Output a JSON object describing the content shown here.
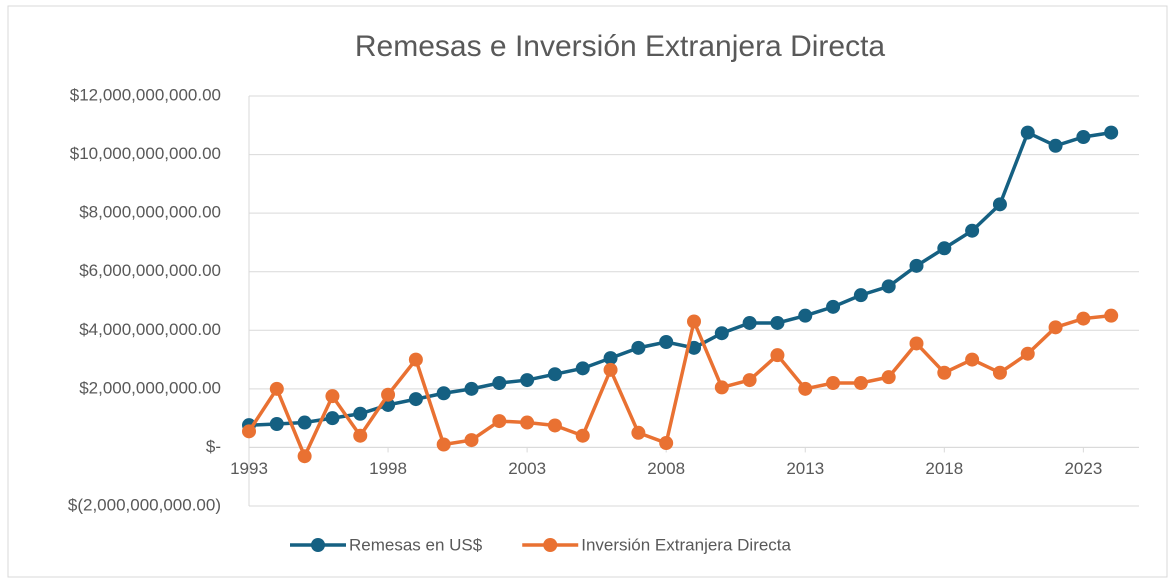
{
  "chart_data": {
    "type": "line",
    "title": "Remesas e Inversión Extranjera Directa",
    "x": [
      1993,
      1994,
      1995,
      1996,
      1997,
      1998,
      1999,
      2000,
      2001,
      2002,
      2003,
      2004,
      2005,
      2006,
      2007,
      2008,
      2009,
      2010,
      2011,
      2012,
      2013,
      2014,
      2015,
      2016,
      2017,
      2018,
      2019,
      2020,
      2021,
      2022,
      2023,
      2024
    ],
    "series": [
      {
        "name": "Remesas en US$",
        "color": "#156082",
        "values": [
          760000000,
          800000000,
          850000000,
          1000000000,
          1150000000,
          1450000000,
          1650000000,
          1850000000,
          2000000000,
          2200000000,
          2300000000,
          2500000000,
          2700000000,
          3050000000,
          3400000000,
          3600000000,
          3400000000,
          3900000000,
          4250000000,
          4250000000,
          4500000000,
          4800000000,
          5200000000,
          5500000000,
          6200000000,
          6800000000,
          7400000000,
          8300000000,
          10750000000,
          10300000000,
          10600000000,
          10750000000
        ]
      },
      {
        "name": "Inversión Extranjera Directa",
        "color": "#e97132",
        "values": [
          550000000,
          2000000000,
          -300000000,
          1750000000,
          400000000,
          1800000000,
          3000000000,
          100000000,
          250000000,
          900000000,
          850000000,
          750000000,
          400000000,
          2650000000,
          500000000,
          150000000,
          4300000000,
          2050000000,
          2300000000,
          3150000000,
          2000000000,
          2200000000,
          2200000000,
          2400000000,
          3550000000,
          2550000000,
          3000000000,
          2550000000,
          3200000000,
          4100000000,
          4400000000,
          4500000000
        ]
      }
    ],
    "xlim": [
      1993,
      2025
    ],
    "xticks": [
      1993,
      1998,
      2003,
      2008,
      2013,
      2018,
      2023
    ],
    "ylim": [
      -2000000000,
      12000000000
    ],
    "yticks": [
      {
        "value": -2000000000,
        "label": "$(2,000,000,000.00)"
      },
      {
        "value": 0,
        "label": "$-"
      },
      {
        "value": 2000000000,
        "label": "$2,000,000,000.00"
      },
      {
        "value": 4000000000,
        "label": "$4,000,000,000.00"
      },
      {
        "value": 6000000000,
        "label": "$6,000,000,000.00"
      },
      {
        "value": 8000000000,
        "label": "$8,000,000,000.00"
      },
      {
        "value": 10000000000,
        "label": "$10,000,000,000.00"
      },
      {
        "value": 12000000000,
        "label": "$12,000,000,000.00"
      }
    ],
    "grid": true,
    "legend": "bottom"
  }
}
